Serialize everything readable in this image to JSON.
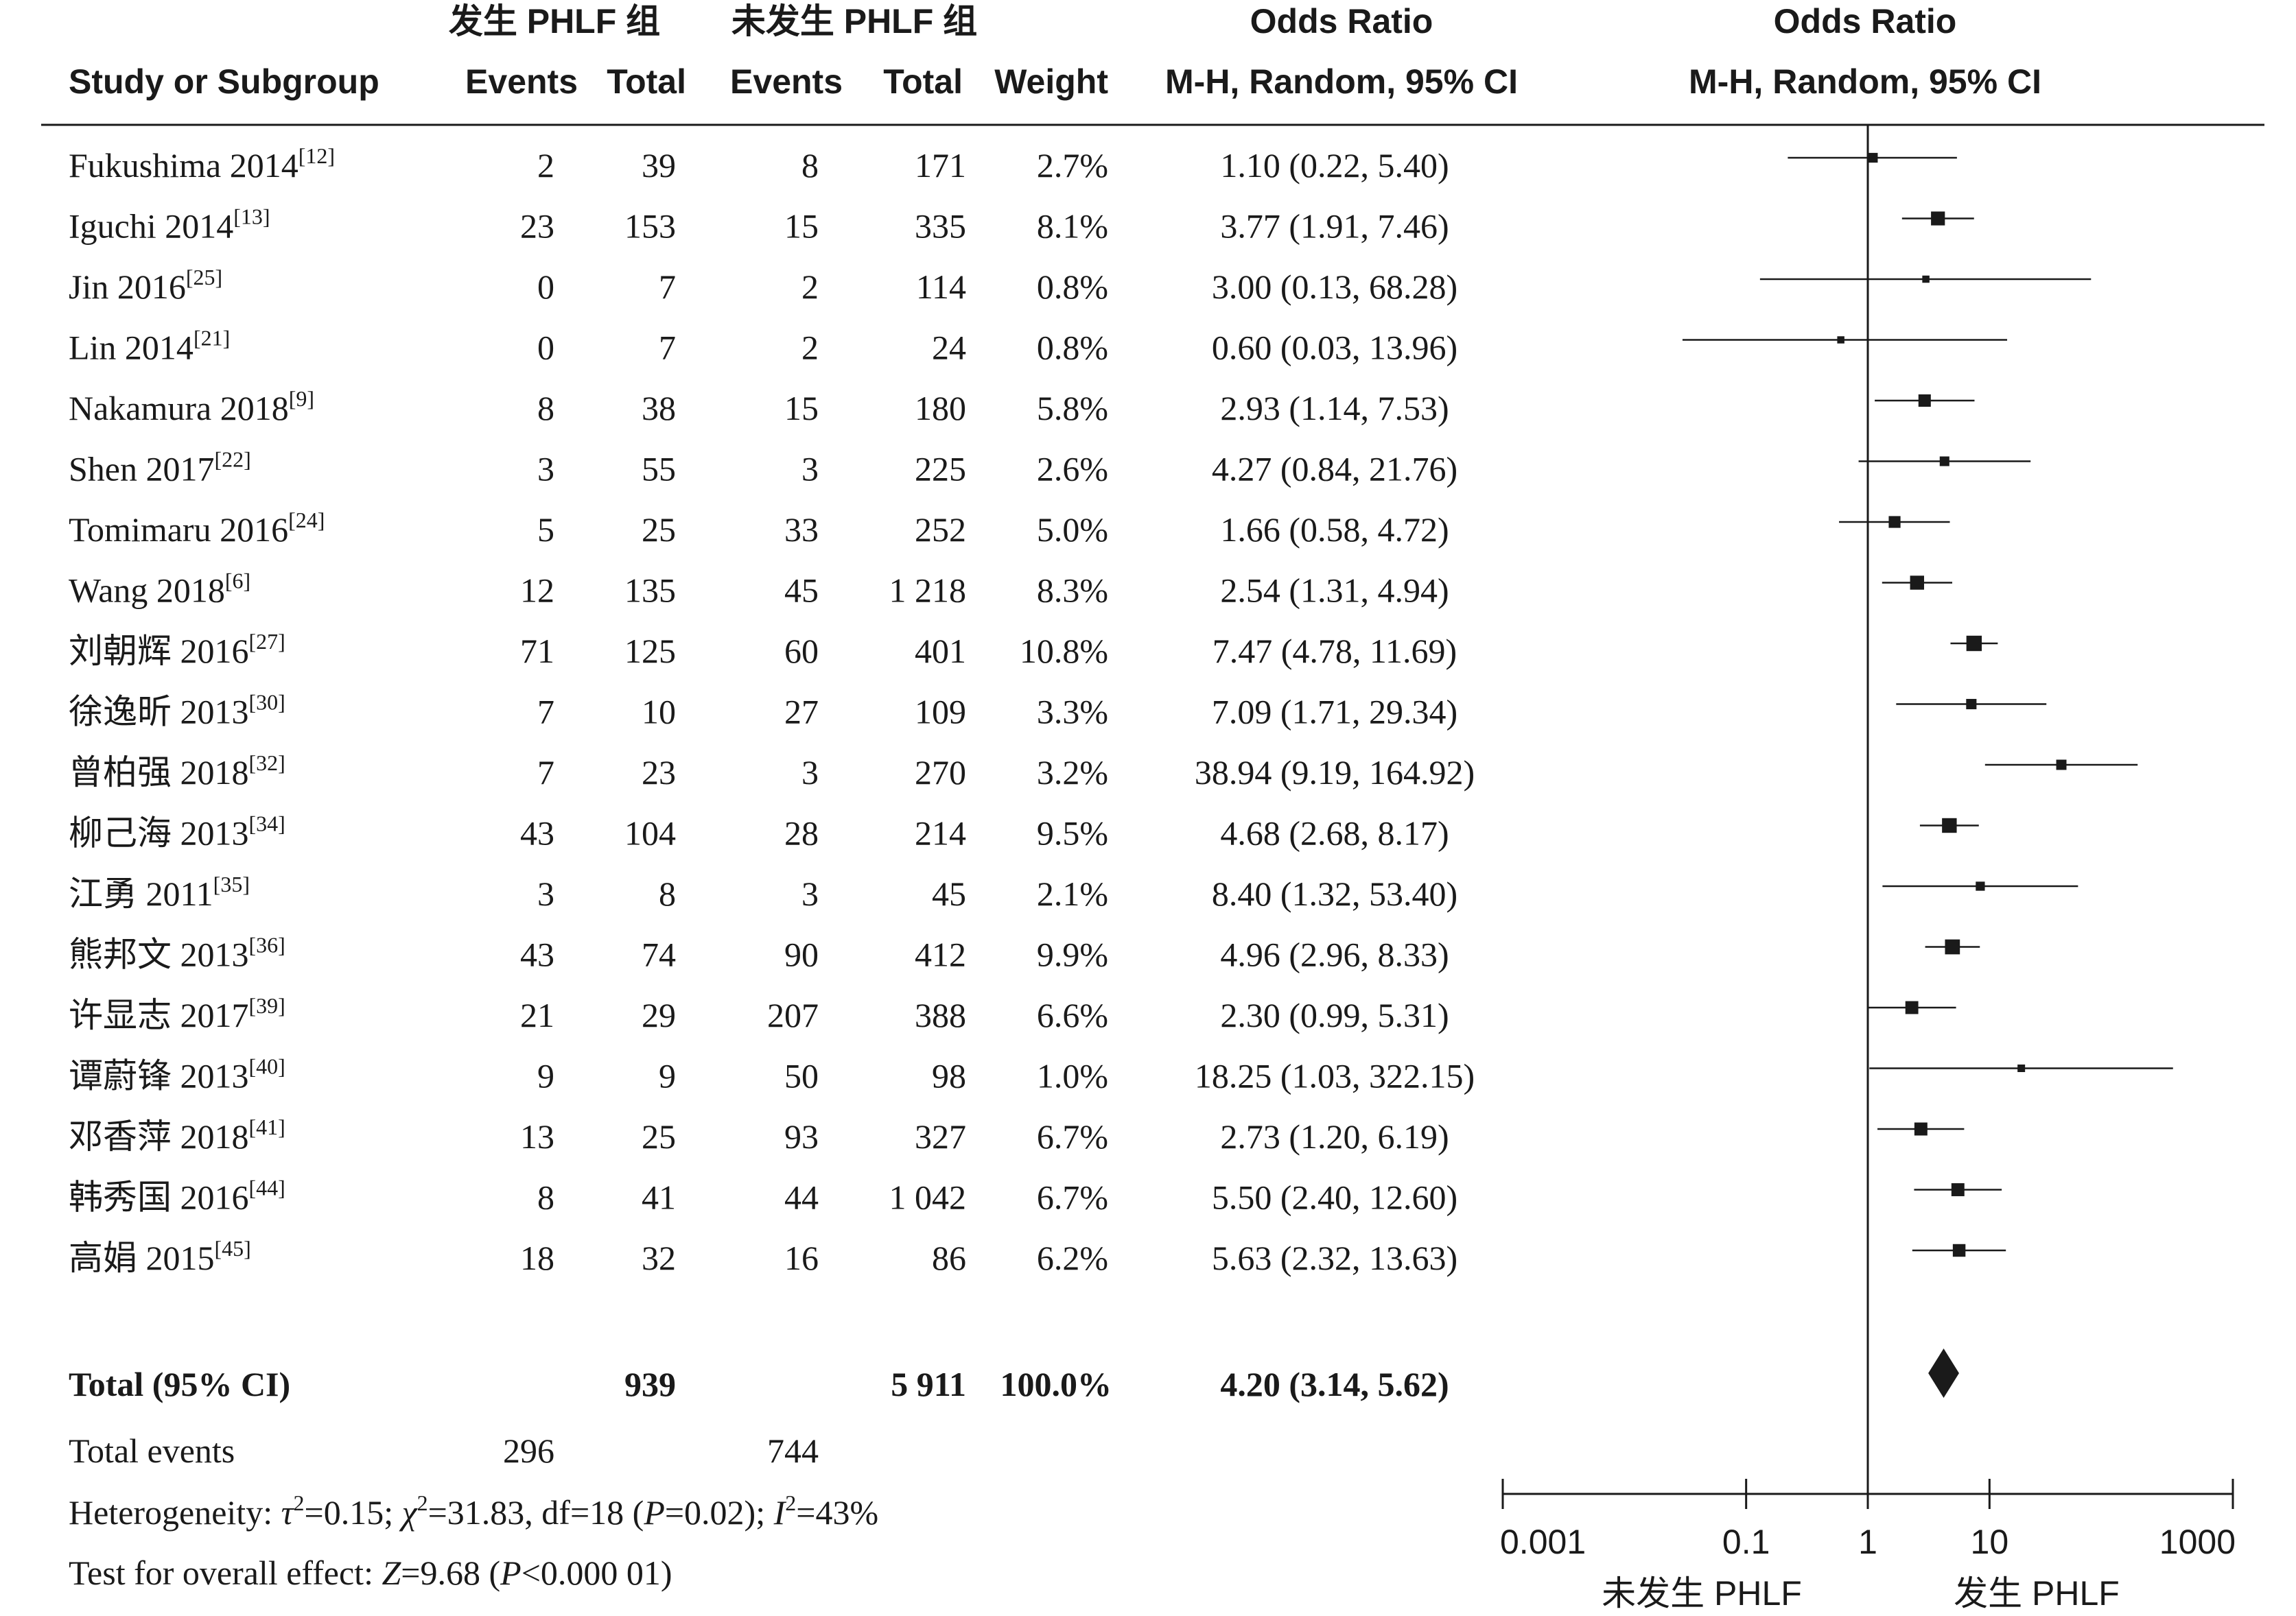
{
  "header": {
    "group1_title": "发生 PHLF 组",
    "group2_title": "未发生 PHLF 组",
    "or_title": "Odds Ratio",
    "or_method": "M-H, Random, 95% CI",
    "plot_title": "Odds Ratio",
    "plot_method": "M-H, Random, 95% CI",
    "col_study": "Study or Subgroup",
    "col_events1": "Events",
    "col_total1": "Total",
    "col_events2": "Events",
    "col_total2": "Total",
    "col_weight": "Weight"
  },
  "studies": [
    {
      "name": "Fukushima 2014",
      "ref": "[12]",
      "events1": "2",
      "total1": "39",
      "events2": "8",
      "total2": "171",
      "weight": "2.7%",
      "or_text": "1.10 (0.22, 5.40)",
      "or": 1.1,
      "lo": 0.22,
      "hi": 5.4,
      "w": 2.7
    },
    {
      "name": "Iguchi 2014",
      "ref": "[13]",
      "events1": "23",
      "total1": "153",
      "events2": "15",
      "total2": "335",
      "weight": "8.1%",
      "or_text": "3.77 (1.91, 7.46)",
      "or": 3.77,
      "lo": 1.91,
      "hi": 7.46,
      "w": 8.1
    },
    {
      "name": "Jin 2016",
      "ref": "[25]",
      "events1": "0",
      "total1": "7",
      "events2": "2",
      "total2": "114",
      "weight": "0.8%",
      "or_text": "3.00 (0.13, 68.28)",
      "or": 3.0,
      "lo": 0.13,
      "hi": 68.28,
      "w": 0.8
    },
    {
      "name": "Lin 2014",
      "ref": "[21]",
      "events1": "0",
      "total1": "7",
      "events2": "2",
      "total2": "24",
      "weight": "0.8%",
      "or_text": "0.60 (0.03, 13.96)",
      "or": 0.6,
      "lo": 0.03,
      "hi": 13.96,
      "w": 0.8
    },
    {
      "name": "Nakamura 2018",
      "ref": "[9]",
      "events1": "8",
      "total1": "38",
      "events2": "15",
      "total2": "180",
      "weight": "5.8%",
      "or_text": "2.93 (1.14, 7.53)",
      "or": 2.93,
      "lo": 1.14,
      "hi": 7.53,
      "w": 5.8
    },
    {
      "name": "Shen 2017",
      "ref": "[22]",
      "events1": "3",
      "total1": "55",
      "events2": "3",
      "total2": "225",
      "weight": "2.6%",
      "or_text": "4.27 (0.84, 21.76)",
      "or": 4.27,
      "lo": 0.84,
      "hi": 21.76,
      "w": 2.6
    },
    {
      "name": "Tomimaru 2016",
      "ref": "[24]",
      "events1": "5",
      "total1": "25",
      "events2": "33",
      "total2": "252",
      "weight": "5.0%",
      "or_text": "1.66 (0.58, 4.72)",
      "or": 1.66,
      "lo": 0.58,
      "hi": 4.72,
      "w": 5.0
    },
    {
      "name": "Wang 2018",
      "ref": "[6]",
      "events1": "12",
      "total1": "135",
      "events2": "45",
      "total2": "1 218",
      "weight": "8.3%",
      "or_text": "2.54 (1.31, 4.94)",
      "or": 2.54,
      "lo": 1.31,
      "hi": 4.94,
      "w": 8.3
    },
    {
      "name": "刘朝辉 2016",
      "ref": "[27]",
      "events1": "71",
      "total1": "125",
      "events2": "60",
      "total2": "401",
      "weight": "10.8%",
      "or_text": "7.47 (4.78, 11.69)",
      "or": 7.47,
      "lo": 4.78,
      "hi": 11.69,
      "w": 10.8
    },
    {
      "name": "徐逸昕 2013",
      "ref": "[30]",
      "events1": "7",
      "total1": "10",
      "events2": "27",
      "total2": "109",
      "weight": "3.3%",
      "or_text": "7.09 (1.71, 29.34)",
      "or": 7.09,
      "lo": 1.71,
      "hi": 29.34,
      "w": 3.3
    },
    {
      "name": "曾柏强 2018",
      "ref": "[32]",
      "events1": "7",
      "total1": "23",
      "events2": "3",
      "total2": "270",
      "weight": "3.2%",
      "or_text": "38.94 (9.19, 164.92)",
      "or": 38.94,
      "lo": 9.19,
      "hi": 164.92,
      "w": 3.2
    },
    {
      "name": "柳己海 2013",
      "ref": "[34]",
      "events1": "43",
      "total1": "104",
      "events2": "28",
      "total2": "214",
      "weight": "9.5%",
      "or_text": "4.68 (2.68, 8.17)",
      "or": 4.68,
      "lo": 2.68,
      "hi": 8.17,
      "w": 9.5
    },
    {
      "name": "江勇 2011",
      "ref": "[35]",
      "events1": "3",
      "total1": "8",
      "events2": "3",
      "total2": "45",
      "weight": "2.1%",
      "or_text": "8.40 (1.32, 53.40)",
      "or": 8.4,
      "lo": 1.32,
      "hi": 53.4,
      "w": 2.1
    },
    {
      "name": "熊邦文 2013",
      "ref": "[36]",
      "events1": "43",
      "total1": "74",
      "events2": "90",
      "total2": "412",
      "weight": "9.9%",
      "or_text": "4.96 (2.96, 8.33)",
      "or": 4.96,
      "lo": 2.96,
      "hi": 8.33,
      "w": 9.9
    },
    {
      "name": "许显志 2017",
      "ref": "[39]",
      "events1": "21",
      "total1": "29",
      "events2": "207",
      "total2": "388",
      "weight": "6.6%",
      "or_text": "2.30 (0.99, 5.31)",
      "or": 2.3,
      "lo": 0.99,
      "hi": 5.31,
      "w": 6.6
    },
    {
      "name": "谭蔚锋 2013",
      "ref": "[40]",
      "events1": "9",
      "total1": "9",
      "events2": "50",
      "total2": "98",
      "weight": "1.0%",
      "or_text": "18.25 (1.03, 322.15)",
      "or": 18.25,
      "lo": 1.03,
      "hi": 322.15,
      "w": 1.0
    },
    {
      "name": "邓香萍 2018",
      "ref": "[41]",
      "events1": "13",
      "total1": "25",
      "events2": "93",
      "total2": "327",
      "weight": "6.7%",
      "or_text": "2.73 (1.20, 6.19)",
      "or": 2.73,
      "lo": 1.2,
      "hi": 6.19,
      "w": 6.7
    },
    {
      "name": "韩秀国 2016",
      "ref": "[44]",
      "events1": "8",
      "total1": "41",
      "events2": "44",
      "total2": "1 042",
      "weight": "6.7%",
      "or_text": "5.50 (2.40, 12.60)",
      "or": 5.5,
      "lo": 2.4,
      "hi": 12.6,
      "w": 6.7
    },
    {
      "name": "高娟 2015",
      "ref": "[45]",
      "events1": "18",
      "total1": "32",
      "events2": "16",
      "total2": "86",
      "weight": "6.2%",
      "or_text": "5.63 (2.32, 13.63)",
      "or": 5.63,
      "lo": 2.32,
      "hi": 13.63,
      "w": 6.2
    }
  ],
  "total": {
    "label": "Total (95% CI)",
    "total1": "939",
    "total2": "5 911",
    "weight": "100.0%",
    "or_text": "4.20 (3.14, 5.62)",
    "or": 4.2,
    "lo": 3.14,
    "hi": 5.62
  },
  "total_events": {
    "label": "Total events",
    "events1": "296",
    "events2": "744"
  },
  "heterogeneity": {
    "label": "Heterogeneity: ",
    "tau_sym": "τ",
    "tau_value": "=0.15; ",
    "chi_sym": "χ",
    "chi_value": "=31.83, df=18 (",
    "p_sym": "P",
    "p_value": "=0.02); ",
    "i_sym": "I",
    "i_value": "=43%",
    "sup": "2"
  },
  "overall_effect": {
    "label": "Test for overall effect: ",
    "z_sym": "Z",
    "z_value": "=9.68 (",
    "p_sym": "P",
    "p_value": "<0.000 01)"
  },
  "axis": {
    "ticks": [
      0.001,
      0.1,
      1,
      10,
      1000
    ],
    "tick_labels": [
      "0.001",
      "0.1",
      "1",
      "10",
      "1000"
    ],
    "scale": "log",
    "range": [
      0.001,
      1000
    ],
    "left_label": "未发生 PHLF",
    "right_label": "发生 PHLF"
  },
  "chart_data": {
    "type": "forest",
    "title": "Odds Ratio",
    "subtitle": "M-H, Random, 95% CI",
    "x_scale": "log",
    "xlim": [
      0.001,
      1000
    ],
    "x_ticks": [
      0.001,
      0.1,
      1,
      10,
      1000
    ],
    "x_left_label": "未发生 PHLF",
    "x_right_label": "发生 PHLF",
    "reference_line": 1,
    "pooled": {
      "or": 4.2,
      "lo": 3.14,
      "hi": 5.62
    }
  }
}
